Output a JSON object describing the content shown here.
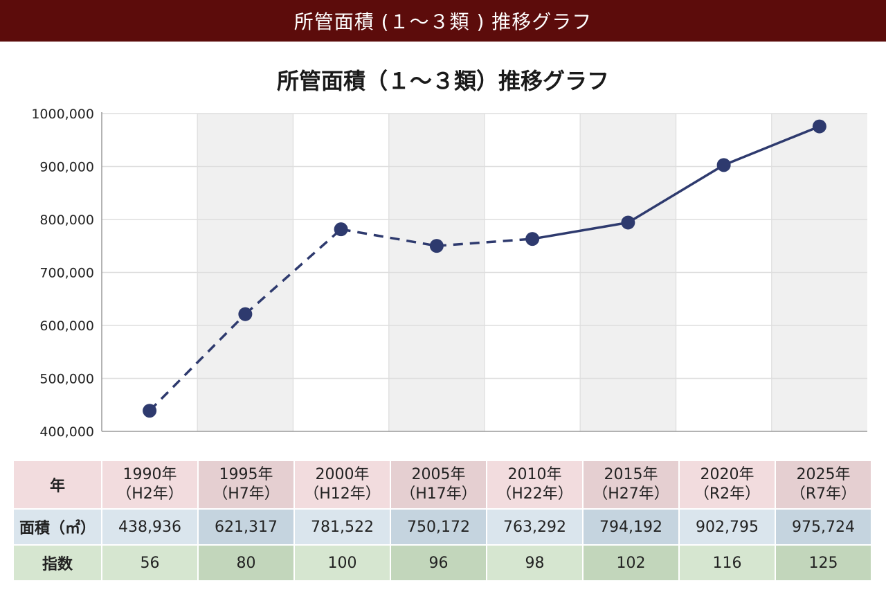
{
  "header": {
    "title": "所管面積 (１～３類 ) 推移グラフ"
  },
  "chart_data": {
    "type": "line",
    "title": "所管面積（１～３類）推移グラフ",
    "categories": [
      "1990年(H2年)",
      "1995年(H7年)",
      "2000年(H12年)",
      "2005年(H17年)",
      "2010年(H22年)",
      "2015年(H27年)",
      "2020年(R2年)",
      "2025年(R7年)"
    ],
    "series": [
      {
        "values": [
          438936,
          621317,
          781522,
          750172,
          763292,
          794192,
          902795,
          975724
        ]
      }
    ],
    "dashed_segments_until_index": 4,
    "ylim": [
      400000,
      1000000
    ],
    "yticks": [
      "400,000",
      "500,000",
      "600,000",
      "700,000",
      "800,000",
      "900,000",
      "1000,000"
    ],
    "ytick_values": [
      400000,
      500000,
      600000,
      700000,
      800000,
      900000,
      1000000
    ],
    "grid": true,
    "colors": {
      "line": "#2e3a6e",
      "marker": "#2e3a6e",
      "band": "#f0f0f0",
      "header": "#5c0c0b"
    }
  },
  "table": {
    "row_labels": {
      "year": "年",
      "area": "面積（㎡）",
      "index": "指数"
    },
    "years": [
      {
        "year": "1990年",
        "era": "（H2年）"
      },
      {
        "year": "1995年",
        "era": "（H7年）"
      },
      {
        "year": "2000年",
        "era": "（H12年）"
      },
      {
        "year": "2005年",
        "era": "（H17年）"
      },
      {
        "year": "2010年",
        "era": "（H22年）"
      },
      {
        "year": "2015年",
        "era": "（H27年）"
      },
      {
        "year": "2020年",
        "era": "（R2年）"
      },
      {
        "year": "2025年",
        "era": "（R7年）"
      }
    ],
    "areas": [
      "438,936",
      "621,317",
      "781,522",
      "750,172",
      "763,292",
      "794,192",
      "902,795",
      "975,724"
    ],
    "indices": [
      "56",
      "80",
      "100",
      "96",
      "98",
      "102",
      "116",
      "125"
    ]
  }
}
